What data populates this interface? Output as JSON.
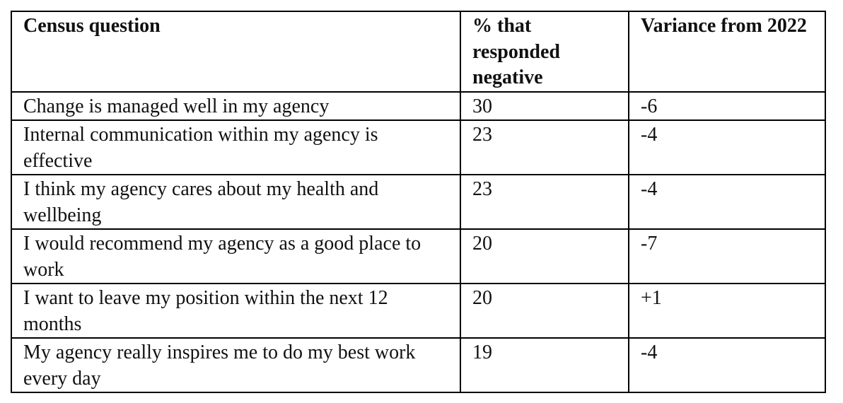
{
  "table": {
    "header": [
      "Census question",
      "% that responded negative",
      "Variance from 2022"
    ],
    "rows": [
      [
        "Change is managed well in my agency",
        "30",
        "-6"
      ],
      [
        "Internal communication within my agency is effective",
        "23",
        "-4"
      ],
      [
        "I think my agency cares about my health and wellbeing",
        "23",
        "-4"
      ],
      [
        "I would recommend my agency as a good place to work",
        "20",
        "-7"
      ],
      [
        "I want to leave my position within the next 12 months",
        "20",
        "+1"
      ],
      [
        "My agency really inspires me to do my best work every day",
        "19",
        "-4"
      ]
    ]
  }
}
